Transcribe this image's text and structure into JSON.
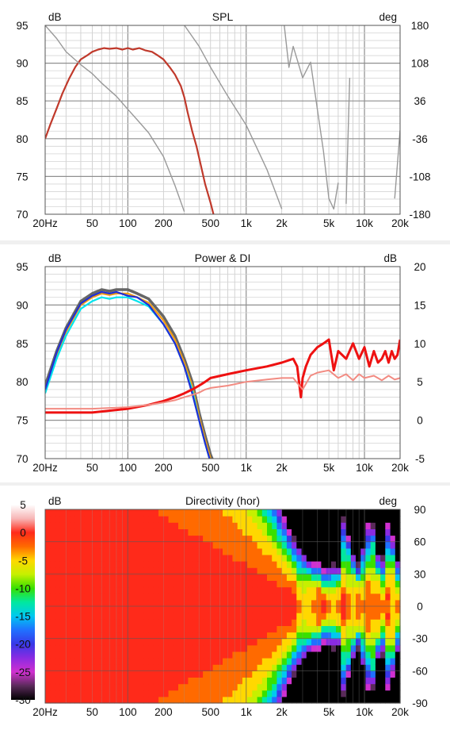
{
  "chart_data": [
    {
      "type": "line",
      "title": "SPL",
      "ylabel_left": "dB",
      "ylabel_right": "deg",
      "x_ticks": [
        "20Hz",
        "50",
        "100",
        "200",
        "500",
        "1k",
        "2k",
        "5k",
        "10k",
        "20k"
      ],
      "x_tick_values": [
        20,
        50,
        100,
        200,
        500,
        1000,
        2000,
        5000,
        10000,
        20000
      ],
      "xlim": [
        20,
        20000
      ],
      "x_scale": "log",
      "ylim": [
        70,
        95
      ],
      "y_ticks": [
        "95",
        "90",
        "85",
        "80",
        "75",
        "70"
      ],
      "y2lim": [
        -180,
        180
      ],
      "y2_ticks": [
        "180",
        "108",
        "36",
        "-36",
        "-108",
        "-180"
      ],
      "grid": true,
      "series": [
        {
          "color": "#c0392b",
          "axis": "left",
          "x": [
            20,
            22,
            25,
            28,
            32,
            36,
            40,
            45,
            50,
            56,
            63,
            70,
            80,
            90,
            100,
            110,
            125,
            140,
            160,
            180,
            200,
            225,
            250,
            280,
            300,
            320,
            350,
            380,
            400,
            450,
            500,
            550
          ],
          "y": [
            80,
            81.8,
            84,
            86,
            88,
            89.5,
            90.5,
            91,
            91.5,
            91.8,
            92,
            91.9,
            92,
            91.8,
            92,
            91.8,
            92,
            91.7,
            91.5,
            91,
            90.5,
            89.5,
            88.5,
            87,
            85.5,
            83.5,
            81,
            79,
            77.5,
            74,
            71.5,
            69
          ]
        },
        {
          "color": "#999999",
          "axis": "right",
          "x": [
            20,
            25,
            30,
            40,
            50,
            60,
            80,
            100,
            120,
            150,
            200,
            250,
            300,
            301,
            400,
            500,
            700,
            1000,
            1500,
            2000,
            2100,
            2300,
            2500,
            3000,
            3500,
            4000,
            4500,
            5000,
            5500,
            6000,
            6500,
            7000,
            7500,
            8000,
            9000,
            10000,
            11000,
            12000,
            13000,
            14000,
            15000,
            16000,
            17000,
            18000,
            20000
          ],
          "y": [
            180,
            155,
            130,
            105,
            88,
            70,
            45,
            20,
            0,
            -25,
            -70,
            -125,
            -175,
            180,
            140,
            100,
            45,
            -10,
            -95,
            -170,
            180,
            100,
            140,
            80,
            110,
            20,
            -60,
            -150,
            -170,
            -120,
            170,
            -160,
            80,
            -175,
            120,
            -170,
            150,
            -175,
            130,
            -165,
            140,
            -170,
            160,
            -150,
            -20
          ]
        }
      ]
    },
    {
      "type": "line",
      "title": "Power & DI",
      "ylabel_left": "dB",
      "ylabel_right": "dB",
      "x_ticks": [
        "20Hz",
        "50",
        "100",
        "200",
        "500",
        "1k",
        "2k",
        "5k",
        "10k",
        "20k"
      ],
      "x_tick_values": [
        20,
        50,
        100,
        200,
        500,
        1000,
        2000,
        5000,
        10000,
        20000
      ],
      "xlim": [
        20,
        20000
      ],
      "x_scale": "log",
      "ylim": [
        70,
        95
      ],
      "y_ticks": [
        "95",
        "90",
        "85",
        "80",
        "75",
        "70"
      ],
      "y2lim": [
        -5,
        20
      ],
      "y2_ticks": [
        "20",
        "15",
        "10",
        "5",
        "0",
        "-5"
      ],
      "grid": true,
      "series": [
        {
          "color": "#666666",
          "axis": "left",
          "x": [
            20,
            25,
            30,
            40,
            50,
            60,
            70,
            80,
            100,
            120,
            150,
            200,
            250,
            300,
            350,
            400,
            450,
            500,
            550
          ],
          "y": [
            79.5,
            84,
            87,
            90.5,
            91.5,
            92,
            91.8,
            92,
            92,
            91.5,
            90.8,
            88.5,
            86,
            83,
            80,
            76,
            73,
            70.5,
            69
          ]
        },
        {
          "color": "#f39c12",
          "axis": "left",
          "x": [
            20,
            25,
            30,
            40,
            50,
            60,
            70,
            80,
            100,
            120,
            150,
            200,
            250,
            300,
            350,
            400,
            450,
            500
          ],
          "y": [
            79,
            83.5,
            86.5,
            90,
            91,
            91.5,
            91.3,
            91.5,
            91.5,
            91,
            90.3,
            88,
            85.5,
            82.5,
            79.5,
            75.5,
            72.5,
            70
          ]
        },
        {
          "color": "#00e5ee",
          "axis": "left",
          "x": [
            20,
            25,
            30,
            40,
            50,
            60,
            70,
            80,
            100,
            120,
            150,
            200,
            250,
            300,
            350,
            400,
            450,
            500
          ],
          "y": [
            78.5,
            83,
            86,
            89.5,
            90.5,
            91,
            90.8,
            91,
            91,
            90.5,
            89.8,
            87.5,
            85,
            82,
            79,
            75,
            72,
            69.5
          ]
        },
        {
          "color": "#1f2fd6",
          "axis": "left",
          "x": [
            20,
            25,
            30,
            40,
            50,
            60,
            70,
            80,
            100,
            120,
            150,
            200,
            250,
            300,
            350,
            400,
            450,
            500
          ],
          "y": [
            79,
            83.8,
            86.8,
            90.2,
            91.2,
            91.7,
            91.5,
            91.7,
            91.2,
            91,
            90,
            87.5,
            85,
            82,
            78.5,
            75,
            72,
            69.5
          ]
        },
        {
          "color": "#ee1111",
          "axis": "right",
          "x": [
            20,
            50,
            100,
            150,
            200,
            250,
            300,
            350,
            400,
            450,
            500,
            700,
            1000,
            1500,
            2000,
            2500,
            2700,
            2900,
            3000,
            3200,
            3500,
            4000,
            4500,
            5000,
            5500,
            6000,
            7000,
            8000,
            9000,
            10000,
            11000,
            12000,
            13000,
            14000,
            15000,
            16000,
            17000,
            18000,
            19000,
            20000
          ],
          "y": [
            1,
            1,
            1.5,
            2,
            2.5,
            3,
            3.5,
            4,
            4.5,
            5,
            5.5,
            6,
            6.5,
            7,
            7.5,
            8,
            7,
            3,
            5.5,
            7,
            8.5,
            9.5,
            10,
            10.5,
            6.5,
            9,
            8,
            10,
            8,
            9.5,
            7,
            9,
            7.5,
            8,
            9,
            7.5,
            9,
            8,
            8.5,
            10.5
          ]
        },
        {
          "color": "#f28b82",
          "axis": "right",
          "x": [
            20,
            50,
            100,
            150,
            200,
            250,
            300,
            350,
            400,
            450,
            500,
            700,
            1000,
            1500,
            2000,
            2500,
            3000,
            3500,
            4000,
            5000,
            6000,
            7000,
            8000,
            9000,
            10000,
            12000,
            14000,
            16000,
            18000,
            20000
          ],
          "y": [
            1.5,
            1.5,
            1.7,
            2,
            2.3,
            2.6,
            3,
            3.3,
            3.6,
            4,
            4.2,
            4.5,
            5,
            5.3,
            5.5,
            5.5,
            4,
            5.8,
            6.2,
            6.5,
            5.5,
            6,
            5.2,
            6,
            5.5,
            5.8,
            5.2,
            5.8,
            5.3,
            5.5
          ]
        }
      ]
    },
    {
      "type": "heatmap",
      "title": "Directivity (hor)",
      "ylabel_left": "dB",
      "ylabel_right": "deg",
      "x_ticks": [
        "20Hz",
        "50",
        "100",
        "200",
        "500",
        "1k",
        "2k",
        "5k",
        "10k",
        "20k"
      ],
      "x_tick_values": [
        20,
        50,
        100,
        200,
        500,
        1000,
        2000,
        5000,
        10000,
        20000
      ],
      "xlim": [
        20,
        20000
      ],
      "x_scale": "log",
      "ylim": [
        -90,
        90
      ],
      "y_ticks": [
        "90",
        "60",
        "30",
        "0",
        "-30",
        "-60",
        "-90"
      ],
      "colorbar_ticks": [
        "5",
        "0",
        "-5",
        "-10",
        "-15",
        "-20",
        "-25",
        "-30"
      ],
      "colorbar_range": [
        -30,
        5
      ],
      "grid": true
    }
  ]
}
